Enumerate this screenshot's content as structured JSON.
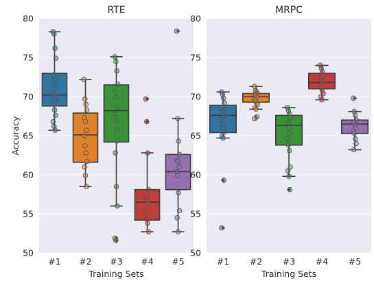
{
  "chart_data": [
    {
      "type": "box",
      "title": "RTE",
      "xlabel": "Training Sets",
      "ylabel": "Accuracy",
      "ylim": [
        50,
        80
      ],
      "yticks": [
        50,
        55,
        60,
        65,
        70,
        75,
        80
      ],
      "grid": true,
      "categories": [
        "#1",
        "#2",
        "#3",
        "#4",
        "#5"
      ],
      "colors": [
        "#3274a1",
        "#e1812c",
        "#3a923a",
        "#c03d3e",
        "#9372b2"
      ],
      "boxes": [
        {
          "q1": 68.8,
          "median": 70.2,
          "q3": 73.0,
          "whisker_low": 65.7,
          "whisker_high": 78.3,
          "outliers": []
        },
        {
          "q1": 61.6,
          "median": 65.1,
          "q3": 67.9,
          "whisker_low": 58.5,
          "whisker_high": 72.2,
          "outliers": []
        },
        {
          "q1": 64.2,
          "median": 68.2,
          "q3": 71.5,
          "whisker_low": 56.0,
          "whisker_high": 75.1,
          "outliers": [
            51.6,
            51.9
          ]
        },
        {
          "q1": 54.2,
          "median": 56.5,
          "q3": 58.1,
          "whisker_low": 52.7,
          "whisker_high": 62.8,
          "outliers": [
            66.8,
            69.7
          ]
        },
        {
          "q1": 58.1,
          "median": 60.4,
          "q3": 62.6,
          "whisker_low": 52.7,
          "whisker_high": 67.2,
          "outliers": [
            78.4
          ]
        }
      ],
      "points": [
        [
          78.3,
          78.0,
          76.2,
          74.9,
          72.8,
          72.2,
          71.6,
          70.6,
          70.2,
          69.9,
          69.7,
          69.0,
          68.3,
          67.6,
          66.8,
          66.2,
          65.7
        ],
        [
          72.2,
          69.7,
          69.0,
          68.3,
          67.3,
          66.8,
          65.7,
          65.0,
          63.7,
          62.8,
          61.7,
          61.0,
          59.9,
          58.5
        ],
        [
          75.1,
          74.5,
          73.3,
          71.6,
          70.8,
          69.9,
          68.6,
          67.8,
          66.9,
          65.8,
          64.4,
          62.8,
          58.5,
          56.0,
          51.9,
          51.6
        ],
        [
          69.7,
          66.8,
          62.8,
          58.1,
          57.2,
          56.8,
          56.3,
          55.3,
          54.3,
          53.8,
          52.7
        ],
        [
          78.4,
          67.2,
          64.3,
          62.6,
          61.8,
          61.7,
          61.0,
          60.4,
          59.9,
          57.7,
          55.4,
          54.5,
          52.7
        ]
      ]
    },
    {
      "type": "box",
      "title": "MRPC",
      "xlabel": "Training Sets",
      "ylabel": "",
      "ylim": [
        50,
        80
      ],
      "yticks": [
        50,
        55,
        60,
        65,
        70,
        75,
        80
      ],
      "grid": true,
      "categories": [
        "#1",
        "#2",
        "#3",
        "#4",
        "#5"
      ],
      "colors": [
        "#3274a1",
        "#e1812c",
        "#3a923a",
        "#c03d3e",
        "#9372b2"
      ],
      "boxes": [
        {
          "q1": 65.4,
          "median": 67.6,
          "q3": 68.9,
          "whisker_low": 64.7,
          "whisker_high": 70.6,
          "outliers": [
            59.3,
            53.2
          ]
        },
        {
          "q1": 69.3,
          "median": 70.0,
          "q3": 70.4,
          "whisker_low": 68.4,
          "whisker_high": 71.3,
          "outliers": [
            67.2,
            67.4
          ]
        },
        {
          "q1": 63.8,
          "median": 66.3,
          "q3": 67.6,
          "whisker_low": 59.8,
          "whisker_high": 68.6,
          "outliers": [
            58.1
          ]
        },
        {
          "q1": 71.0,
          "median": 71.8,
          "q3": 73.0,
          "whisker_low": 69.6,
          "whisker_high": 74.0,
          "outliers": []
        },
        {
          "q1": 65.3,
          "median": 66.5,
          "q3": 67.0,
          "whisker_low": 63.2,
          "whisker_high": 68.1,
          "outliers": [
            69.8
          ]
        }
      ],
      "points": [
        [
          70.6,
          70.3,
          69.8,
          69.2,
          68.6,
          68.1,
          67.6,
          67.1,
          66.5,
          66.0,
          65.5,
          65.0,
          64.7,
          59.3,
          53.2
        ],
        [
          71.3,
          70.8,
          70.6,
          70.4,
          70.3,
          70.1,
          69.9,
          69.7,
          69.5,
          69.2,
          69.0,
          68.6,
          68.4,
          67.4,
          67.2
        ],
        [
          68.6,
          68.2,
          67.8,
          67.3,
          66.7,
          66.0,
          65.3,
          64.6,
          63.8,
          63.1,
          61.0,
          60.5,
          59.8,
          58.1
        ],
        [
          74.0,
          73.6,
          73.2,
          72.8,
          72.4,
          72.0,
          71.8,
          71.4,
          71.1,
          70.7,
          70.4,
          70.0,
          69.6
        ],
        [
          69.8,
          68.1,
          67.6,
          67.0,
          66.7,
          66.4,
          66.0,
          65.6,
          65.3,
          64.6,
          64.0,
          63.2
        ]
      ]
    }
  ]
}
